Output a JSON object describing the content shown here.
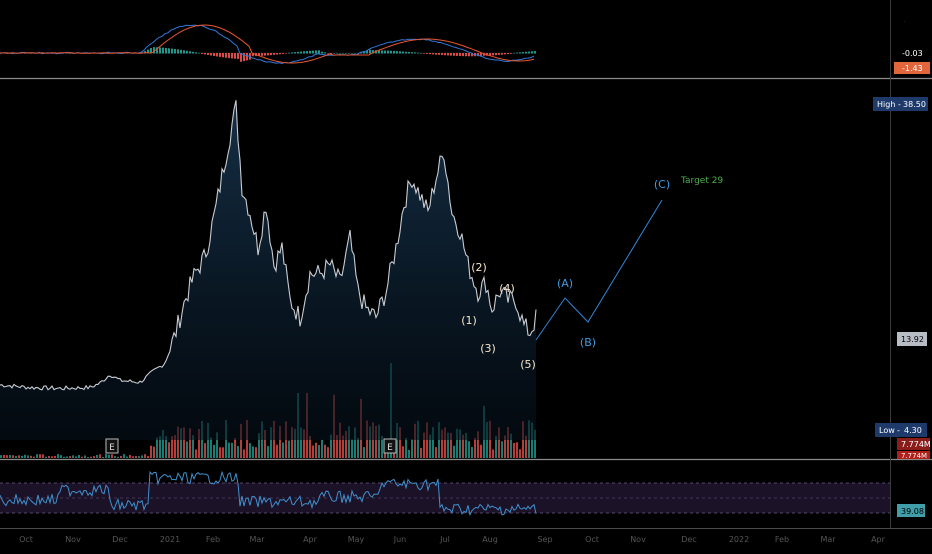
{
  "chart_data": [
    {
      "panel": "macd",
      "type": "line",
      "series": [],
      "histogram": "positive/negative bars around zero",
      "price_labels": [
        {
          "text": "-0.03",
          "color": "#ffffff",
          "bg": "#000000"
        },
        {
          "text": "-1.43",
          "color": "#ffffff",
          "bg": "#e1663c"
        }
      ],
      "colors": {
        "macd": "#2f77d9",
        "signal": "#e8572f",
        "hist_pos": "#26a69a",
        "hist_neg": "#ef5350"
      }
    },
    {
      "panel": "price",
      "type": "area",
      "x": [
        "Oct",
        "Nov",
        "Dec",
        "2021",
        "Feb",
        "Mar",
        "Apr",
        "May",
        "Jun",
        "Jul",
        "Aug",
        "Sep"
      ],
      "approx_y": [
        6.0,
        5.9,
        6.3,
        9.5,
        23,
        36,
        24,
        21,
        24,
        33,
        18,
        14
      ],
      "high_label": "High",
      "high_value": "38.50",
      "low_label": "Low",
      "low_value": "4.30",
      "last_value": "13.92",
      "volume_labels": [
        "7.774M",
        "7.774M"
      ],
      "earnings_markers": [
        "E",
        "E"
      ],
      "wave_labels": {
        "impulse": [
          "(1)",
          "(2)",
          "(3)",
          "(4)",
          "(5)"
        ],
        "corrective": [
          "(A)",
          "(B)",
          "(C)"
        ]
      },
      "target_text": "Target 29",
      "colors": {
        "price": "#c8ccd3",
        "area": "#0f2233",
        "vol_up": "#26a69a",
        "vol_down": "#ef5350",
        "waves_impulse": "#f5e6c8",
        "waves_corr": "#3f9ae0",
        "target": "#4caf50"
      }
    },
    {
      "panel": "rsi",
      "type": "line",
      "last_value": "39.08",
      "colors": {
        "rsi": "#3f8fcc",
        "band": "#2a1c3d"
      }
    }
  ],
  "axis": {
    "month_labels": [
      "Oct",
      "Nov",
      "Dec",
      "2021",
      "Feb",
      "Mar",
      "Apr",
      "May",
      "Jun",
      "Jul",
      "Aug",
      "Sep",
      "Oct",
      "Nov",
      "Dec",
      "2022",
      "Feb",
      "Mar",
      "Apr"
    ]
  }
}
